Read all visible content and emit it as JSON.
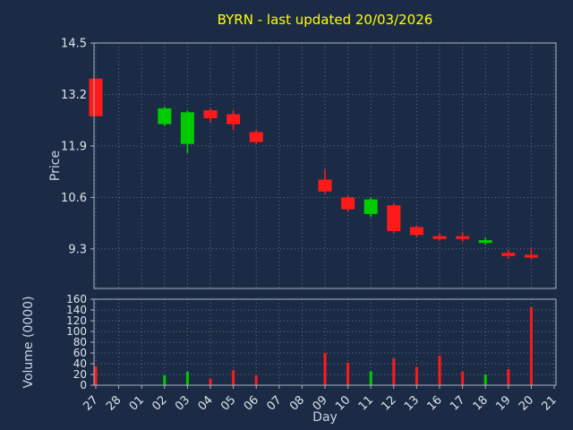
{
  "chart_data": {
    "type": "candlestick",
    "title": "BYRN - last updated 20/03/2026",
    "xlabel": "Day",
    "ylabel_price": "Price",
    "ylabel_volume": "Volume (0000)",
    "legend": "none",
    "grid": true,
    "price_tick_values": [
      14.5,
      13.2,
      11.9,
      10.6,
      9.3
    ],
    "price_range": [
      8.3,
      14.5
    ],
    "volume_ticks": [
      160,
      140,
      120,
      100,
      80,
      60,
      40,
      20,
      0
    ],
    "volume_range": [
      0,
      160
    ],
    "categories": [
      "27",
      "28",
      "01",
      "02",
      "03",
      "04",
      "05",
      "06",
      "07",
      "08",
      "09",
      "10",
      "11",
      "12",
      "13",
      "16",
      "17",
      "18",
      "19",
      "20",
      "21"
    ],
    "candles": [
      {
        "day": "27",
        "open": 13.6,
        "high": 13.6,
        "low": 12.65,
        "close": 12.65,
        "volume": 35,
        "direction": "down"
      },
      {
        "day": "02",
        "open": 12.45,
        "high": 12.9,
        "low": 12.4,
        "close": 12.85,
        "volume": 18,
        "direction": "up"
      },
      {
        "day": "03",
        "open": 11.95,
        "high": 12.8,
        "low": 11.72,
        "close": 12.75,
        "volume": 25,
        "direction": "up"
      },
      {
        "day": "04",
        "open": 12.8,
        "high": 12.85,
        "low": 12.5,
        "close": 12.6,
        "volume": 12,
        "direction": "down"
      },
      {
        "day": "05",
        "open": 12.7,
        "high": 12.8,
        "low": 12.3,
        "close": 12.45,
        "volume": 28,
        "direction": "down"
      },
      {
        "day": "06",
        "open": 12.25,
        "high": 12.3,
        "low": 11.95,
        "close": 12.0,
        "volume": 18,
        "direction": "down"
      },
      {
        "day": "09",
        "open": 11.05,
        "high": 11.3,
        "low": 10.7,
        "close": 10.75,
        "volume": 60,
        "direction": "down"
      },
      {
        "day": "10",
        "open": 10.6,
        "high": 10.65,
        "low": 10.25,
        "close": 10.3,
        "volume": 42,
        "direction": "down"
      },
      {
        "day": "11",
        "open": 10.18,
        "high": 10.6,
        "low": 10.1,
        "close": 10.55,
        "volume": 26,
        "direction": "up"
      },
      {
        "day": "12",
        "open": 10.4,
        "high": 10.45,
        "low": 9.7,
        "close": 9.75,
        "volume": 50,
        "direction": "down"
      },
      {
        "day": "13",
        "open": 9.85,
        "high": 9.9,
        "low": 9.6,
        "close": 9.65,
        "volume": 34,
        "direction": "down"
      },
      {
        "day": "16",
        "open": 9.62,
        "high": 9.68,
        "low": 9.5,
        "close": 9.55,
        "volume": 55,
        "direction": "down"
      },
      {
        "day": "17",
        "open": 9.62,
        "high": 9.72,
        "low": 9.48,
        "close": 9.55,
        "volume": 25,
        "direction": "down"
      },
      {
        "day": "18",
        "open": 9.45,
        "high": 9.58,
        "low": 9.4,
        "close": 9.52,
        "volume": 20,
        "direction": "up"
      },
      {
        "day": "19",
        "open": 9.2,
        "high": 9.28,
        "low": 9.05,
        "close": 9.12,
        "volume": 30,
        "direction": "down"
      },
      {
        "day": "20",
        "open": 9.15,
        "high": 9.32,
        "low": 9.03,
        "close": 9.08,
        "volume": 145,
        "direction": "down"
      }
    ],
    "colors": {
      "background": "#1c2b45",
      "up": "#00cc00",
      "down": "#ff1a1a",
      "grid": "#5f6d84",
      "spine": "#a9b4c2",
      "tick_text": "#dde3ea",
      "axis_label": "#c7d3e6",
      "title": "#ffff00"
    }
  }
}
